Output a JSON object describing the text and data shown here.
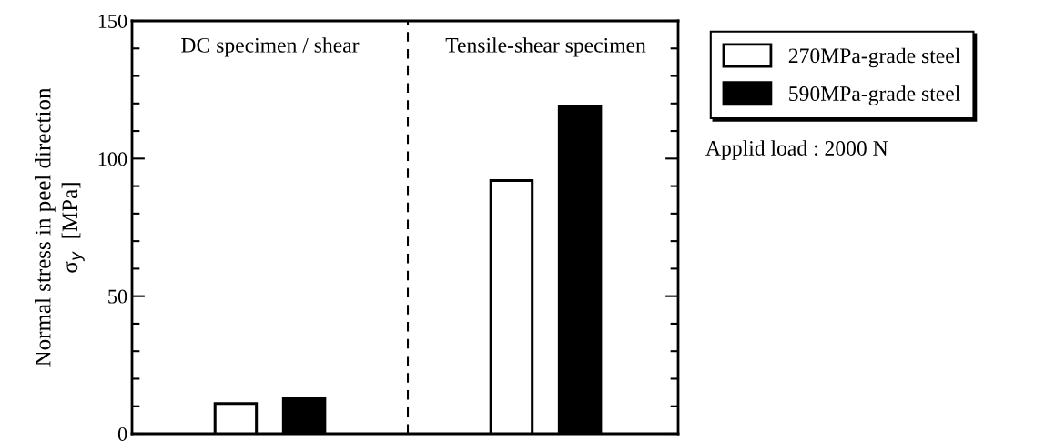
{
  "chart_data": {
    "type": "bar",
    "categories": [
      null,
      null
    ],
    "ylabel": "Normal stress in peel direction\nσ$_{y}$  [MPa]",
    "series": [
      {
        "name": "270MPa-grade steel",
        "color": "#ffffff",
        "values": [
          11,
          92
        ]
      },
      {
        "name": "590MPa-grade steel",
        "color": "#000000",
        "values": [
          13,
          119
        ]
      }
    ],
    "ylim": [
      0,
      150
    ],
    "yticks": [
      0,
      {
        "value": 10,
        "label": null
      },
      {
        "value": 20,
        "label": null
      },
      {
        "value": 30,
        "label": null
      },
      {
        "value": 40,
        "label": null
      },
      50,
      {
        "value": 60,
        "label": null
      },
      {
        "value": 70,
        "label": null
      },
      {
        "value": 80,
        "label": null
      },
      {
        "value": 90,
        "label": null
      },
      100,
      {
        "value": 110,
        "label": null
      },
      {
        "value": 120,
        "label": null
      },
      {
        "value": 130,
        "label": null
      },
      {
        "value": 140,
        "label": null
      },
      150
    ],
    "annotations": [
      {
        "text": "DC specimen / shear"
      },
      {
        "text": "Tensile-shear specimen"
      },
      "Applid load : 2000 N"
    ],
    "legend": "right",
    "grid": false,
    "tick_labels": "y"
  }
}
